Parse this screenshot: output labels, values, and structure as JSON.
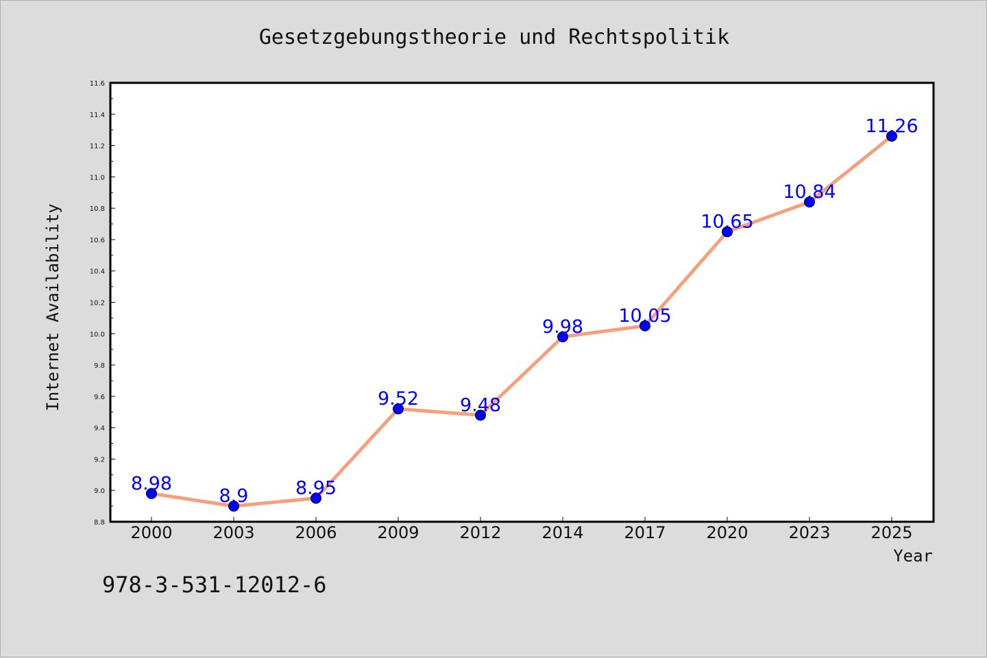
{
  "chart_data": {
    "type": "line",
    "title": "Gesetzgebungstheorie und Rechtspolitik",
    "xlabel": "Year",
    "ylabel": "Internet Availability",
    "categories": [
      "2000",
      "2003",
      "2006",
      "2009",
      "2012",
      "2014",
      "2017",
      "2020",
      "2023",
      "2025"
    ],
    "series": [
      {
        "values": [
          8.98,
          8.9,
          8.95,
          9.52,
          9.48,
          9.98,
          10.05,
          10.65,
          10.84,
          11.26
        ],
        "labels": [
          "8.98",
          "8.9",
          "8.95",
          "9.52",
          "9.48",
          "9.98",
          "10.05",
          "10.65",
          "10.84",
          "11.26"
        ],
        "line_color": "#f4a07c",
        "marker_color": "#0000ff"
      }
    ],
    "ylim": [
      8.8,
      11.6
    ],
    "yticks": [
      "8.8",
      "9.0",
      "9.2",
      "9.4",
      "9.6",
      "9.8",
      "10.0",
      "10.2",
      "10.4",
      "10.6",
      "10.8",
      "11.0",
      "11.2",
      "11.4",
      "11.6"
    ],
    "grid": false,
    "legend": "none"
  },
  "footer": {
    "isbn": "978-3-531-12012-6"
  },
  "colors": {
    "background": "#dcdcdc",
    "plot_background": "#ffffff",
    "axis": "#000000"
  }
}
